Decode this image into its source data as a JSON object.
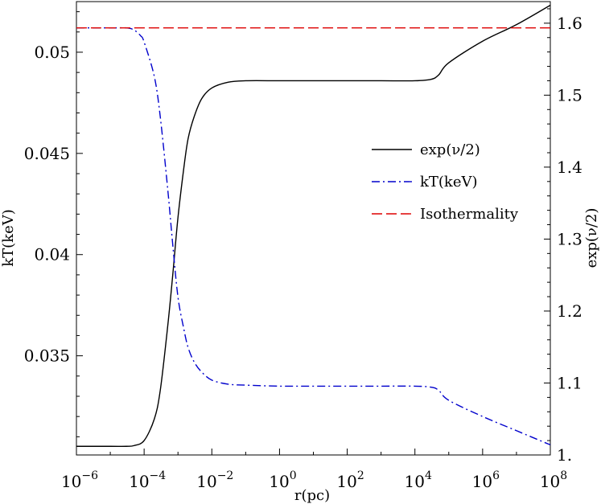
{
  "chart_data": {
    "type": "line",
    "title": "",
    "xlabel": "r(pc)",
    "ylabel_left": "kT(keV)",
    "ylabel_right": "exp(ν/2)",
    "x_scale": "log",
    "xlim": [
      1e-06,
      100000000.0
    ],
    "ylim_left": [
      0.0301,
      0.0525
    ],
    "ylim_right": [
      1.0,
      1.63
    ],
    "grid": false,
    "legend_position": "right-middle",
    "x_ticks": [
      {
        "base": "10",
        "exp": "−6",
        "value": 1e-06
      },
      {
        "base": "10",
        "exp": "−4",
        "value": 0.0001
      },
      {
        "base": "10",
        "exp": "−2",
        "value": 0.01
      },
      {
        "base": "10",
        "exp": "0",
        "value": 1
      },
      {
        "base": "10",
        "exp": "2",
        "value": 100.0
      },
      {
        "base": "10",
        "exp": "4",
        "value": 10000.0
      },
      {
        "base": "10",
        "exp": "6",
        "value": 1000000.0
      },
      {
        "base": "10",
        "exp": "8",
        "value": 100000000.0
      }
    ],
    "y_left_ticks": [
      {
        "label": "0.035",
        "value": 0.035
      },
      {
        "label": "0.04",
        "value": 0.04
      },
      {
        "label": "0.045",
        "value": 0.045
      },
      {
        "label": "0.05",
        "value": 0.05
      }
    ],
    "y_right_ticks": [
      {
        "label": "1.",
        "value": 1.0
      },
      {
        "label": "1.1",
        "value": 1.1
      },
      {
        "label": "1.2",
        "value": 1.2
      },
      {
        "label": "1.3",
        "value": 1.3
      },
      {
        "label": "1.4",
        "value": 1.4
      },
      {
        "label": "1.5",
        "value": 1.5
      },
      {
        "label": "1.6",
        "value": 1.6
      }
    ],
    "series": [
      {
        "name": "exp(ν/2)",
        "axis": "right",
        "color": "#000000",
        "dash": "solid",
        "x": [
          1e-06,
          1e-05,
          3e-05,
          5e-05,
          0.0001,
          0.0002,
          0.0003,
          0.0005,
          0.0007,
          0.001,
          0.0015,
          0.002,
          0.003,
          0.005,
          0.01,
          0.03,
          0.1,
          1,
          10,
          100,
          1000,
          10000.0,
          30000.0,
          50000.0,
          100000.0,
          1000000.0,
          10000000.0,
          100000000.0
        ],
        "y": [
          1.012,
          1.012,
          1.012,
          1.013,
          1.02,
          1.05,
          1.09,
          1.18,
          1.25,
          1.33,
          1.4,
          1.44,
          1.47,
          1.495,
          1.51,
          1.518,
          1.52,
          1.52,
          1.52,
          1.52,
          1.52,
          1.52,
          1.522,
          1.528,
          1.545,
          1.575,
          1.598,
          1.625
        ]
      },
      {
        "name": "kT(keV)",
        "axis": "left",
        "color": "#0000cc",
        "dash": "dashdot",
        "x": [
          1e-06,
          1e-05,
          3e-05,
          5e-05,
          8e-05,
          0.0001,
          0.0002,
          0.0003,
          0.0005,
          0.0007,
          0.001,
          0.0015,
          0.002,
          0.003,
          0.005,
          0.01,
          0.03,
          0.1,
          1,
          10,
          100,
          1000,
          10000.0,
          30000.0,
          50000.0,
          100000.0,
          1000000.0,
          10000000.0,
          100000000.0
        ],
        "y": [
          0.0512,
          0.0512,
          0.0512,
          0.0511,
          0.0508,
          0.0505,
          0.0488,
          0.0468,
          0.0432,
          0.0405,
          0.0379,
          0.0363,
          0.0354,
          0.0347,
          0.0342,
          0.0338,
          0.0336,
          0.03355,
          0.0335,
          0.0335,
          0.0335,
          0.0335,
          0.0335,
          0.03345,
          0.0333,
          0.0328,
          0.032,
          0.0313,
          0.0306
        ]
      },
      {
        "name": "Isothermality",
        "axis": "left",
        "color": "#dd0000",
        "dash": "dashed",
        "x": [
          1e-06,
          100000000.0
        ],
        "y": [
          0.0512,
          0.0512
        ]
      }
    ]
  }
}
